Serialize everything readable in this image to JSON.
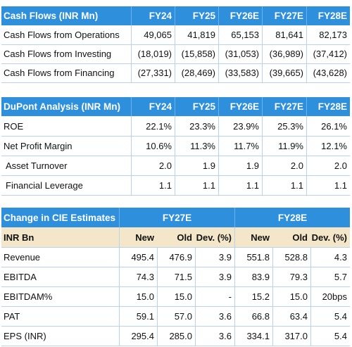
{
  "cash_flows": {
    "title": "Cash Flows (INR Mn)",
    "columns": [
      "FY24",
      "FY25",
      "FY26E",
      "FY27E",
      "FY28E"
    ],
    "rows": [
      {
        "label": "Cash Flows from Operations",
        "values": [
          "49,065",
          "41,819",
          "65,153",
          "81,641",
          "82,173"
        ]
      },
      {
        "label": "Cash Flows from Investing",
        "values": [
          "(18,019)",
          "(15,858)",
          "(31,053)",
          "(36,989)",
          "(37,412)"
        ]
      },
      {
        "label": "Cash Flows from Financing",
        "values": [
          "(27,331)",
          "(28,469)",
          "(33,583)",
          "(39,665)",
          "(43,628)"
        ]
      }
    ]
  },
  "dupont": {
    "title": "DuPont Analysis (INR Mn)",
    "columns": [
      "FY24",
      "FY25",
      "FY26E",
      "FY27E",
      "FY28E"
    ],
    "rows": [
      {
        "label": "ROE",
        "values": [
          "22.1%",
          "23.3%",
          "23.9%",
          "25.3%",
          "26.1%"
        ]
      },
      {
        "label": "Net Profit Margin",
        "values": [
          "10.6%",
          "11.3%",
          "11.7%",
          "11.9%",
          "12.1%"
        ]
      },
      {
        "label": "Asset Turnover",
        "values": [
          "2.0",
          "1.9",
          "1.9",
          "2.0",
          "2.0"
        ]
      },
      {
        "label": "Financial Leverage",
        "values": [
          "1.1",
          "1.1",
          "1.1",
          "1.1",
          "1.1"
        ]
      }
    ]
  },
  "estimates": {
    "title": "Change in CIE Estimates",
    "groups": [
      "FY27E",
      "FY28E"
    ],
    "sub_label": "INR Bn",
    "sub_columns": [
      "New",
      "Old",
      "Dev. (%)",
      "New",
      "Old",
      "Dev. (%)"
    ],
    "rows": [
      {
        "label": "Revenue",
        "values": [
          "495.4",
          "476.9",
          "3.9",
          "551.8",
          "528.8",
          "4.3"
        ]
      },
      {
        "label": "EBITDA",
        "values": [
          "74.3",
          "71.5",
          "3.9",
          "83.9",
          "79.3",
          "5.7"
        ]
      },
      {
        "label": "EBITDAM%",
        "values": [
          "15.0",
          "15.0",
          "-",
          "15.2",
          "15.0",
          "20bps"
        ]
      },
      {
        "label": "PAT",
        "values": [
          "59.1",
          "57.0",
          "3.6",
          "66.8",
          "63.4",
          "5.4"
        ]
      },
      {
        "label": "EPS (INR)",
        "values": [
          "295.4",
          "285.0",
          "3.6",
          "334.1",
          "317.0",
          "5.4"
        ]
      }
    ]
  }
}
